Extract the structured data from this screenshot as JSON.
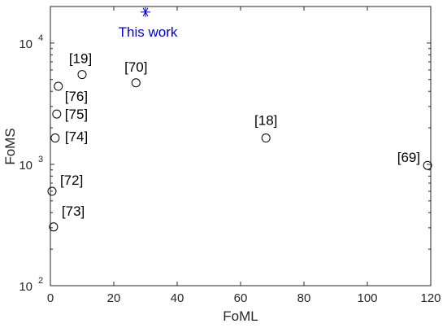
{
  "chart_data": {
    "type": "scatter",
    "xlabel": "FoML",
    "ylabel": "FoMS",
    "xlim": [
      0,
      120
    ],
    "ylim": [
      100,
      20000
    ],
    "y_scale": "log",
    "x_ticks": [
      0,
      20,
      40,
      60,
      80,
      100,
      120
    ],
    "x_tick_labels": [
      "0",
      "20",
      "40",
      "60",
      "80",
      "100",
      "120"
    ],
    "y_ticks": [
      100,
      1000,
      10000
    ],
    "y_tick_labels": [
      {
        "base": "10",
        "exp": "2"
      },
      {
        "base": "10",
        "exp": "3"
      },
      {
        "base": "10",
        "exp": "4"
      }
    ],
    "grid": false,
    "box": true,
    "points": [
      {
        "label": "[19]",
        "x": 10,
        "y": 5500,
        "marker": "circle"
      },
      {
        "label": "[76]",
        "x": 2.5,
        "y": 4400,
        "marker": "circle"
      },
      {
        "label": "[75]",
        "x": 2,
        "y": 2600,
        "marker": "circle"
      },
      {
        "label": "[74]",
        "x": 1.5,
        "y": 1650,
        "marker": "circle"
      },
      {
        "label": "[72]",
        "x": 0.5,
        "y": 600,
        "marker": "circle"
      },
      {
        "label": "[73]",
        "x": 1,
        "y": 305,
        "marker": "circle"
      },
      {
        "label": "[70]",
        "x": 27,
        "y": 4700,
        "marker": "circle"
      },
      {
        "label": "[18]",
        "x": 68,
        "y": 1650,
        "marker": "circle"
      },
      {
        "label": "[69]",
        "x": 119,
        "y": 980,
        "marker": "circle"
      }
    ],
    "highlight": {
      "label": "This work",
      "x": 30,
      "y": 18000,
      "marker": "asterisk",
      "color": "#0000cc"
    },
    "marker_color": "#000000"
  }
}
